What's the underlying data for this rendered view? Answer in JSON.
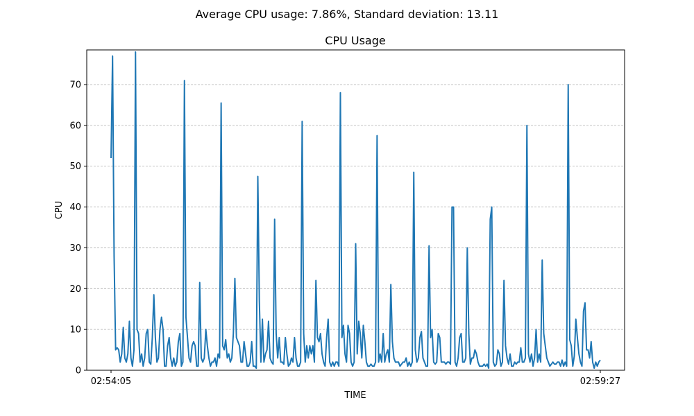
{
  "suptitle": "Average CPU usage: 7.86%, Standard deviation: 13.11",
  "chart_data": {
    "type": "line",
    "title": "CPU Usage",
    "xlabel": "TIME",
    "ylabel": "CPU",
    "x_tick_labels": [
      "02:54:05",
      "02:59:27"
    ],
    "y_ticks": [
      0,
      10,
      20,
      30,
      40,
      50,
      60,
      70
    ],
    "ylim": [
      0,
      78.5
    ],
    "grid": "y-dashed",
    "line_color": "#1f77b4",
    "series": [
      {
        "values": [
          52,
          77,
          28,
          5,
          5.5,
          5,
          2,
          4,
          10.5,
          3,
          2,
          4,
          12,
          3,
          1,
          5,
          78,
          10,
          9,
          2,
          4,
          1,
          3,
          9,
          10,
          2,
          1.5,
          8,
          18.5,
          8,
          2,
          3,
          10,
          13,
          10,
          1,
          1,
          6,
          8,
          3,
          1,
          3,
          1,
          2,
          7,
          9,
          1,
          2,
          71,
          13,
          8,
          3,
          2,
          6,
          7,
          6,
          1,
          1,
          21.5,
          3,
          2,
          3,
          10,
          6,
          3,
          1,
          2,
          2,
          3,
          1,
          4,
          3,
          65.5,
          6,
          5,
          7.5,
          3,
          4,
          2,
          3,
          9,
          22.5,
          8,
          7,
          6,
          2,
          2,
          7,
          4,
          1,
          1,
          2,
          7,
          1,
          1,
          0.5,
          47.5,
          17,
          2,
          12.5,
          2,
          4,
          5,
          12,
          3,
          2,
          1.5,
          37,
          9,
          3,
          8,
          2,
          2,
          1.5,
          8,
          4,
          1,
          1.5,
          3,
          2,
          8,
          3,
          1,
          1,
          2,
          61,
          9,
          2,
          6,
          3,
          6,
          4,
          6,
          2,
          22,
          8,
          7,
          9,
          4,
          2,
          1,
          8,
          12.5,
          2,
          1,
          2,
          1,
          2,
          2,
          1,
          68,
          8,
          11,
          4,
          2,
          11,
          9,
          2,
          1,
          2,
          31,
          4,
          12,
          9,
          3,
          11,
          7,
          2,
          1,
          1,
          1.5,
          1,
          1,
          2,
          57.5,
          2,
          4,
          2,
          9,
          2,
          4,
          5,
          2,
          21,
          7,
          3,
          2,
          2,
          2,
          1,
          1.5,
          2,
          2,
          3,
          1,
          2,
          1,
          2,
          48.5,
          5,
          2,
          3,
          8,
          9.5,
          3,
          2,
          1,
          1,
          30.5,
          8,
          10,
          2,
          1.5,
          2,
          9,
          8,
          2,
          2,
          2,
          1.5,
          2,
          2,
          1.5,
          40,
          40,
          2,
          1,
          3,
          8,
          9,
          2,
          2,
          3,
          30,
          9,
          1.5,
          3,
          3,
          5,
          4,
          2,
          1,
          1,
          1,
          1.5,
          1,
          1.5,
          0.5,
          37,
          40,
          2,
          1,
          1.5,
          5,
          4,
          1,
          2,
          22,
          6,
          3,
          1.5,
          4,
          1,
          1,
          2,
          1.5,
          2,
          2,
          5.5,
          2,
          2,
          3,
          60,
          4,
          2,
          4,
          1,
          3,
          10,
          2,
          4,
          2,
          27,
          9,
          6,
          3,
          2,
          1,
          1.5,
          2,
          1.5,
          1.5,
          2,
          2,
          1,
          2.5,
          1,
          2,
          1,
          70,
          7.5,
          6,
          1,
          3.5,
          12.5,
          8,
          4,
          2,
          1,
          14.5,
          16.5,
          5,
          5,
          3,
          7,
          2,
          0.5,
          2,
          1,
          2,
          2.5
        ]
      }
    ]
  }
}
